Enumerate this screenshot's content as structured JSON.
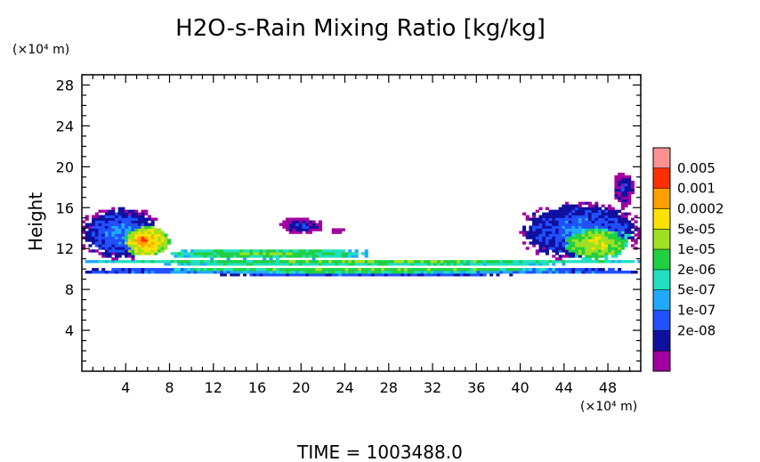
{
  "chart_data": {
    "type": "heatmap",
    "title": "H2O-s-Rain Mixing Ratio [kg/kg]",
    "ylabel": "Height",
    "y_unit": "(×10⁴ m)",
    "x_unit": "(×10⁴ m)",
    "xlim": [
      0,
      51
    ],
    "ylim": [
      0,
      29
    ],
    "x_ticks": [
      4,
      8,
      12,
      16,
      20,
      24,
      28,
      32,
      36,
      40,
      44,
      48
    ],
    "y_ticks": [
      4,
      8,
      12,
      16,
      20,
      24,
      28
    ],
    "time_label": "TIME  =  1003488.0",
    "legend": {
      "position": "right",
      "labels": [
        "0.005",
        "0.001",
        "0.0002",
        "5e-05",
        "1e-05",
        "2e-06",
        "5e-07",
        "1e-07",
        "2e-08"
      ],
      "colors": [
        "#a000a0",
        "#1010a0",
        "#2050ff",
        "#20a8ff",
        "#20e0c0",
        "#20d040",
        "#a0e020",
        "#ffe000",
        "#ffa000",
        "#ff3000",
        "#ff9090"
      ]
    },
    "regions": [
      {
        "desc": "continuous layer base",
        "x": [
          0,
          51
        ],
        "y": [
          9.4,
          10.2
        ],
        "level": 4
      },
      {
        "desc": "layer core",
        "x": [
          0,
          51
        ],
        "y": [
          9.7,
          10.0
        ],
        "level": 7
      },
      {
        "desc": "upper layer band",
        "x": [
          0,
          51
        ],
        "y": [
          10.4,
          11.0
        ],
        "level": 6
      },
      {
        "desc": "left anvil",
        "x": [
          0,
          7
        ],
        "y": [
          11.0,
          16.0
        ],
        "level": 3
      },
      {
        "desc": "left core",
        "x": [
          3.8,
          8
        ],
        "y": [
          11.2,
          14.2
        ],
        "level": 8
      },
      {
        "desc": "left peak",
        "x": [
          4.5,
          6.5
        ],
        "y": [
          12.0,
          13.5
        ],
        "level": 9
      },
      {
        "desc": "middle strip",
        "x": [
          7,
          27
        ],
        "y": [
          11.0,
          12.0
        ],
        "level": 6
      },
      {
        "desc": "isolated cloud",
        "x": [
          18.0,
          22.0
        ],
        "y": [
          13.5,
          15.0
        ],
        "level": 2
      },
      {
        "desc": "small cloud",
        "x": [
          22.5,
          24.0
        ],
        "y": [
          13.5,
          14.0
        ],
        "level": 1
      },
      {
        "desc": "right anvil",
        "x": [
          40,
          51
        ],
        "y": [
          11.0,
          16.5
        ],
        "level": 3
      },
      {
        "desc": "right core",
        "x": [
          44,
          50
        ],
        "y": [
          11.0,
          14.0
        ],
        "level": 7
      },
      {
        "desc": "right tower",
        "x": [
          48.5,
          50.5
        ],
        "y": [
          16.0,
          19.5
        ],
        "level": 2
      }
    ]
  }
}
